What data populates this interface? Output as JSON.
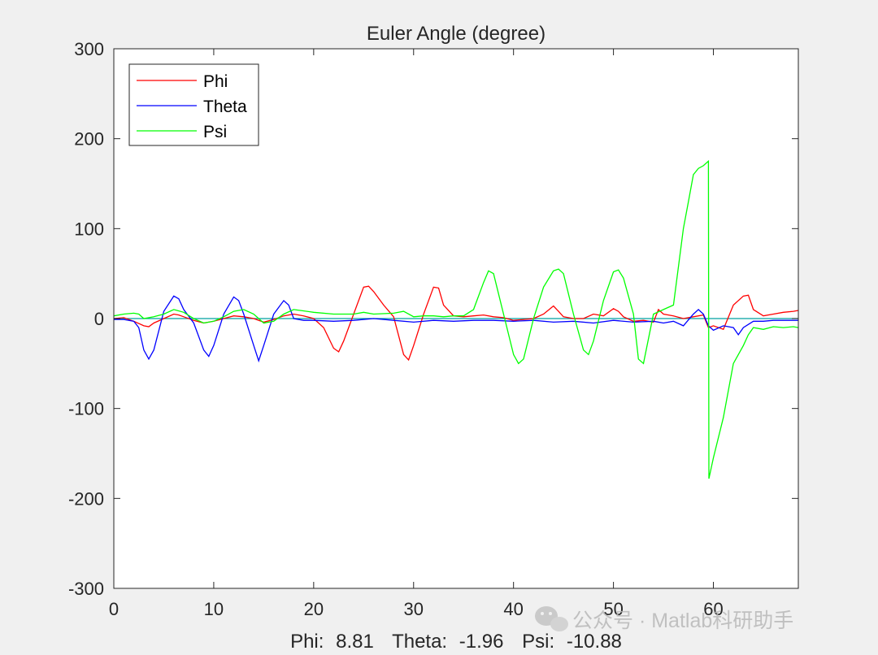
{
  "chart_data": {
    "type": "line",
    "title": "Euler Angle (degree)",
    "xlabel": "",
    "ylabel": "",
    "xlim": [
      0,
      68.5
    ],
    "ylim": [
      -300,
      300
    ],
    "x_ticks": [
      "0",
      "10",
      "20",
      "30",
      "40",
      "50",
      "60"
    ],
    "y_ticks": [
      "300",
      "200",
      "100",
      "0",
      "-100",
      "-200",
      "-300"
    ],
    "grid": false,
    "legend_position": "top-left",
    "colors": {
      "Phi": "#ff0000",
      "Theta": "#0000ff",
      "Psi": "#00ff00",
      "zero_line": "#00a0a0"
    },
    "series": [
      {
        "name": "Phi",
        "x": [
          0,
          1,
          2,
          3,
          3.5,
          4,
          5,
          6,
          6.5,
          7,
          8,
          9,
          10,
          11,
          12,
          13,
          14,
          15,
          16,
          17,
          18,
          19,
          20,
          21,
          22,
          22.5,
          23,
          24,
          25,
          25.5,
          26,
          27,
          28,
          29,
          29.5,
          30,
          31,
          32,
          32.5,
          33,
          34,
          35,
          36,
          37,
          38,
          39,
          40,
          41,
          42,
          43,
          44,
          44.5,
          45,
          46,
          47,
          48,
          49,
          50,
          50.5,
          51,
          52,
          53,
          54,
          54.5,
          55,
          56,
          57,
          58,
          59,
          59.5,
          60,
          61,
          62,
          63,
          63.5,
          64,
          65,
          66,
          67,
          68,
          68.5
        ],
        "y": [
          0,
          1,
          -3,
          -8,
          -9,
          -5,
          0,
          5,
          4,
          2,
          -2,
          -5,
          -3,
          0,
          3,
          2,
          0,
          -4,
          -1,
          3,
          5,
          3,
          0,
          -10,
          -33,
          -37,
          -25,
          5,
          35,
          36,
          30,
          15,
          2,
          -40,
          -46,
          -30,
          5,
          35,
          34,
          15,
          3,
          2,
          3,
          4,
          2,
          1,
          -2,
          -1,
          0,
          5,
          14,
          8,
          2,
          0,
          0,
          5,
          3,
          11,
          8,
          2,
          -3,
          -2,
          -4,
          10,
          5,
          3,
          0,
          2,
          4,
          -10,
          -8,
          -12,
          15,
          25,
          26,
          10,
          3,
          5,
          7,
          8,
          9
        ]
      },
      {
        "name": "Theta",
        "x": [
          0,
          1,
          2,
          2.5,
          3,
          3.5,
          4,
          5,
          6,
          6.5,
          7,
          8,
          9,
          9.5,
          10,
          11,
          12,
          12.5,
          13,
          14,
          14.5,
          15,
          16,
          17,
          17.5,
          18,
          19,
          20,
          22,
          24,
          26,
          28,
          30,
          32,
          34,
          36,
          38,
          40,
          42,
          44,
          46,
          48,
          50,
          52,
          54,
          55,
          56,
          57,
          58,
          58.5,
          59,
          59.5,
          60,
          61,
          62,
          62.5,
          63,
          64,
          65,
          66,
          67,
          68,
          68.5
        ],
        "y": [
          -1,
          -1,
          -3,
          -10,
          -35,
          -45,
          -35,
          8,
          25,
          22,
          10,
          -5,
          -35,
          -42,
          -30,
          5,
          24,
          20,
          5,
          -30,
          -47,
          -30,
          5,
          20,
          15,
          0,
          -2,
          -2,
          -3,
          -2,
          0,
          -2,
          -4,
          -2,
          -3,
          -2,
          -2,
          -3,
          -2,
          -4,
          -3,
          -5,
          -2,
          -4,
          -3,
          -5,
          -3,
          -8,
          5,
          10,
          5,
          -8,
          -13,
          -8,
          -10,
          -18,
          -10,
          -3,
          -3,
          -2,
          -2,
          -2,
          -2
        ]
      },
      {
        "name": "Psi",
        "x": [
          0,
          1,
          2,
          2.5,
          3,
          4,
          5,
          6,
          7,
          8,
          9,
          10,
          11,
          12,
          13,
          14,
          15,
          16,
          17,
          18,
          20,
          22,
          24,
          25,
          26,
          28,
          29,
          30,
          31,
          32,
          33,
          34,
          35,
          36,
          37,
          37.5,
          38,
          39,
          40,
          40.5,
          41,
          42,
          43,
          44,
          44.5,
          45,
          46,
          47,
          47.5,
          48,
          49,
          50,
          50.5,
          51,
          52,
          52.5,
          53,
          54,
          55,
          56,
          57,
          57.5,
          58,
          58.5,
          59,
          59.5,
          59.55,
          60,
          61,
          62,
          63,
          63.5,
          64,
          65,
          66,
          67,
          68,
          68.5
        ],
        "y": [
          3,
          5,
          6,
          5,
          0,
          2,
          5,
          10,
          7,
          0,
          -5,
          -3,
          2,
          8,
          10,
          5,
          -5,
          -3,
          5,
          10,
          7,
          5,
          5,
          7,
          5,
          6,
          8,
          2,
          3,
          3,
          2,
          3,
          3,
          10,
          40,
          53,
          50,
          5,
          -40,
          -50,
          -45,
          0,
          35,
          53,
          55,
          50,
          5,
          -35,
          -40,
          -25,
          20,
          52,
          54,
          45,
          5,
          -45,
          -50,
          5,
          10,
          15,
          100,
          130,
          160,
          167,
          170,
          175,
          -178,
          -155,
          -110,
          -50,
          -30,
          -18,
          -10,
          -12,
          -9,
          -10,
          -9,
          -10
        ]
      }
    ]
  },
  "status_bar": {
    "phi_label": "Phi:",
    "phi_value": "8.81",
    "theta_label": "Theta:",
    "theta_value": "-1.96",
    "psi_label": "Psi:",
    "psi_value": "-10.88"
  },
  "watermark": {
    "icon": "wechat-icon",
    "text": "公众号 · Matlab科研助手"
  }
}
